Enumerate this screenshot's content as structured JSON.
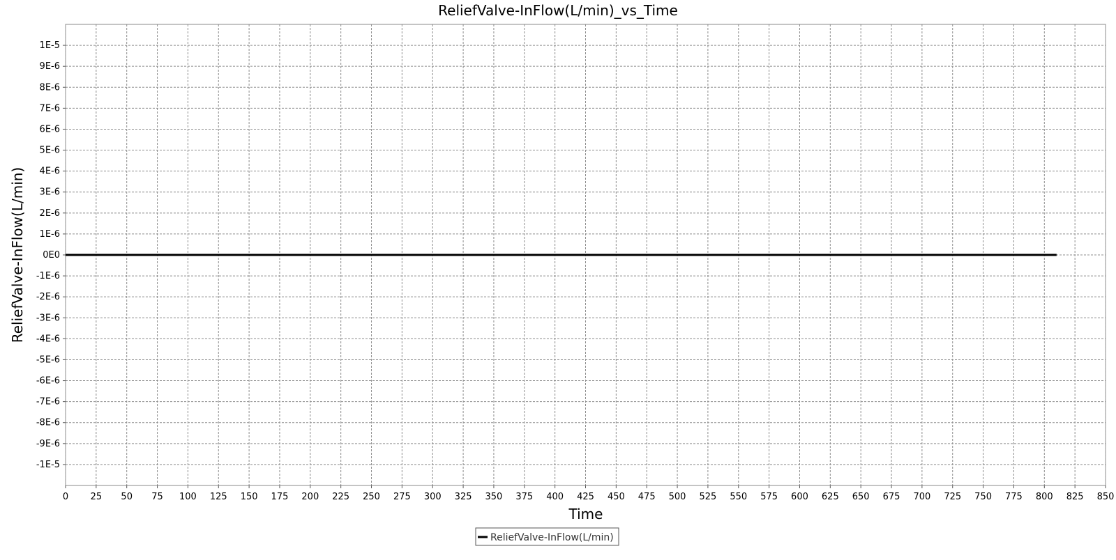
{
  "chart_data": {
    "type": "line",
    "title": "ReliefValve-InFlow(L/min)_vs_Time",
    "xlabel": "Time",
    "ylabel": "ReliefValve-InFlow(L/min)",
    "xlim": [
      0,
      850
    ],
    "ylim": [
      -1.1e-05,
      1.1e-05
    ],
    "x_ticks": [
      0,
      25,
      50,
      75,
      100,
      125,
      150,
      175,
      200,
      225,
      250,
      275,
      300,
      325,
      350,
      375,
      400,
      425,
      450,
      475,
      500,
      525,
      550,
      575,
      600,
      625,
      650,
      675,
      700,
      725,
      750,
      775,
      800,
      825,
      850
    ],
    "x_tick_labels": [
      "0",
      "25",
      "50",
      "75",
      "100",
      "125",
      "150",
      "175",
      "200",
      "225",
      "250",
      "275",
      "300",
      "325",
      "350",
      "375",
      "400",
      "425",
      "450",
      "475",
      "500",
      "525",
      "550",
      "575",
      "600",
      "625",
      "650",
      "675",
      "700",
      "725",
      "750",
      "775",
      "800",
      "825",
      "850"
    ],
    "y_ticks": [
      1e-05,
      9e-06,
      8e-06,
      7e-06,
      6e-06,
      5e-06,
      4e-06,
      3e-06,
      2e-06,
      1e-06,
      0,
      -1e-06,
      -2e-06,
      -3e-06,
      -4e-06,
      -5e-06,
      -6e-06,
      -7e-06,
      -8e-06,
      -9e-06,
      -1e-05
    ],
    "y_tick_labels": [
      "1E-5",
      "9E-6",
      "8E-6",
      "7E-6",
      "6E-6",
      "5E-6",
      "4E-6",
      "3E-6",
      "2E-6",
      "1E-6",
      "0E0",
      "-1E-6",
      "-2E-6",
      "-3E-6",
      "-4E-6",
      "-5E-6",
      "-6E-6",
      "-7E-6",
      "-8E-6",
      "-9E-6",
      "-1E-5"
    ],
    "grid": true,
    "legend_position": "bottom-center",
    "series": [
      {
        "name": "ReliefValve-InFlow(L/min)",
        "color": "#000000",
        "x": [
          0,
          810
        ],
        "y": [
          0,
          0
        ]
      }
    ]
  }
}
